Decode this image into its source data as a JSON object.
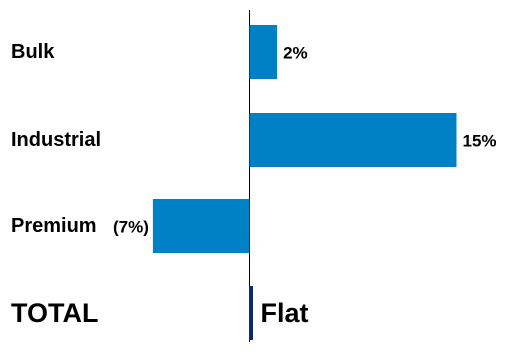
{
  "chart_data": {
    "type": "bar",
    "orientation": "horizontal",
    "categories": [
      "Bulk",
      "Industrial",
      "Premium",
      "TOTAL"
    ],
    "values": [
      2,
      15,
      -7,
      0
    ],
    "value_labels": [
      "2%",
      "15%",
      "(7%)",
      "Flat"
    ],
    "xlim": [
      -10,
      30
    ],
    "grid": false,
    "legend": "none",
    "colors": {
      "bar": "#0081C6",
      "total_bar": "#0A2A6B",
      "axis": "#000000"
    }
  }
}
